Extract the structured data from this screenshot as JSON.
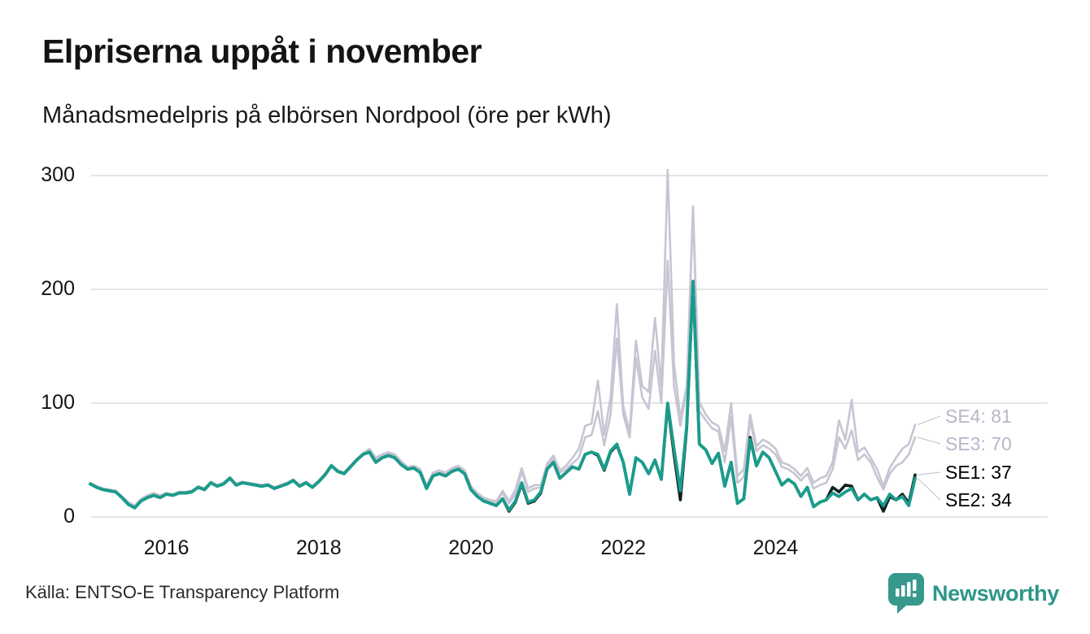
{
  "header": {
    "title": "Elpriserna uppåt i november",
    "subtitle": "Månadsmedelpris på elbörsen Nordpool (öre per kWh)"
  },
  "footer": {
    "source": "Källa: ENTSO-E Transparency Platform",
    "brand": "Newsworthy"
  },
  "colors": {
    "grid": "#dcdbe0",
    "connector": "#c9c8d1",
    "muted_series": "#c7c5d3",
    "muted_label": "#b9b6c7",
    "dark_series": "#10211d",
    "accent_series": "#1a9c8c",
    "brand_teal": "#2e968b",
    "label_black": "#000000"
  },
  "chart_data": {
    "type": "line",
    "title": "Elpriserna uppåt i november",
    "subtitle": "Månadsmedelpris på elbörsen Nordpool (öre per kWh)",
    "x_start": "2015-01",
    "x_end": "2025-11",
    "x_unit": "month",
    "ylim": [
      0,
      310
    ],
    "grid": "horizontal",
    "legend_position": "end-of-line-labels",
    "y_ticks": [
      0,
      100,
      200,
      300
    ],
    "x_ticks": [
      {
        "label": "2016",
        "month": 12
      },
      {
        "label": "2018",
        "month": 36
      },
      {
        "label": "2020",
        "month": 60
      },
      {
        "label": "2022",
        "month": 84
      },
      {
        "label": "2024",
        "month": 108
      }
    ],
    "series": [
      {
        "name": "SE4",
        "end_label": "SE4: 81",
        "end_value": 81,
        "color": "#c7c5d3",
        "label_color": "#b9b6c7",
        "values": [
          30,
          27,
          25,
          24,
          23,
          18,
          13,
          10,
          16,
          19,
          21,
          19,
          21,
          20,
          22,
          22,
          23,
          27,
          25,
          31,
          28,
          30,
          35,
          29,
          31,
          30,
          29,
          28,
          29,
          26,
          28,
          30,
          33,
          28,
          31,
          27,
          32,
          38,
          46,
          41,
          39,
          45,
          51,
          56,
          60,
          52,
          55,
          57,
          55,
          49,
          44,
          45,
          42,
          28,
          39,
          41,
          39,
          43,
          45,
          41,
          27,
          21,
          17,
          15,
          14,
          23,
          14,
          24,
          43,
          25,
          28,
          28,
          47,
          54,
          41,
          45,
          52,
          60,
          80,
          82,
          120,
          72,
          105,
          187,
          97,
          75,
          155,
          115,
          110,
          175,
          115,
          305,
          135,
          87,
          115,
          273,
          101,
          90,
          83,
          80,
          58,
          100,
          36,
          42,
          90,
          62,
          68,
          65,
          60,
          48,
          46,
          42,
          36,
          43,
          30,
          34,
          36,
          48,
          85,
          68,
          103,
          57,
          61,
          52,
          42,
          27,
          43,
          52,
          60,
          64,
          81
        ]
      },
      {
        "name": "SE3",
        "end_label": "SE3: 70",
        "end_value": 70,
        "color": "#c7c5d3",
        "label_color": "#b9b6c7",
        "values": [
          30,
          27,
          25,
          24,
          23,
          18,
          13,
          10,
          16,
          19,
          21,
          19,
          21,
          20,
          22,
          22,
          23,
          27,
          25,
          31,
          28,
          30,
          35,
          29,
          31,
          30,
          29,
          28,
          29,
          26,
          28,
          30,
          33,
          28,
          31,
          27,
          32,
          38,
          46,
          41,
          39,
          45,
          51,
          56,
          59,
          51,
          54,
          56,
          54,
          48,
          43,
          44,
          41,
          27,
          38,
          40,
          38,
          42,
          44,
          40,
          26,
          20,
          16,
          14,
          13,
          21,
          12,
          20,
          40,
          22,
          25,
          26,
          45,
          52,
          39,
          42,
          47,
          52,
          70,
          72,
          93,
          63,
          90,
          157,
          90,
          70,
          140,
          105,
          95,
          146,
          100,
          225,
          115,
          80,
          112,
          270,
          93,
          85,
          78,
          75,
          48,
          88,
          30,
          35,
          85,
          58,
          63,
          60,
          55,
          44,
          42,
          38,
          32,
          38,
          25,
          28,
          30,
          42,
          70,
          60,
          76,
          50,
          55,
          48,
          35,
          24,
          38,
          45,
          48,
          55,
          70
        ]
      },
      {
        "name": "SE1",
        "end_label": "SE1: 37",
        "end_value": 37,
        "color": "#10211d",
        "label_color": "#000000",
        "values": [
          29,
          26,
          24,
          23,
          22,
          17,
          11,
          8,
          14,
          17,
          19,
          17,
          20,
          19,
          21,
          21,
          22,
          26,
          24,
          30,
          27,
          29,
          34,
          28,
          30,
          29,
          28,
          27,
          28,
          25,
          27,
          29,
          32,
          27,
          30,
          26,
          31,
          37,
          45,
          40,
          38,
          44,
          50,
          55,
          57,
          48,
          52,
          54,
          52,
          46,
          42,
          43,
          39,
          25,
          36,
          38,
          36,
          40,
          42,
          38,
          24,
          18,
          14,
          12,
          10,
          16,
          5,
          13,
          29,
          12,
          14,
          21,
          42,
          48,
          34,
          39,
          44,
          42,
          55,
          57,
          54,
          41,
          57,
          63,
          48,
          20,
          52,
          48,
          38,
          50,
          33,
          99,
          55,
          15,
          78,
          207,
          64,
          59,
          47,
          56,
          27,
          48,
          12,
          16,
          70,
          45,
          57,
          52,
          40,
          28,
          33,
          29,
          18,
          26,
          9,
          13,
          15,
          26,
          22,
          28,
          27,
          15,
          20,
          15,
          17,
          5,
          18,
          15,
          20,
          12,
          37
        ]
      },
      {
        "name": "SE2",
        "end_label": "SE2: 34",
        "end_value": 34,
        "color": "#1a9c8c",
        "label_color": "#000000",
        "values": [
          29,
          26,
          24,
          23,
          22,
          17,
          11,
          8,
          14,
          17,
          19,
          17,
          20,
          19,
          21,
          21,
          22,
          26,
          24,
          30,
          27,
          29,
          34,
          28,
          30,
          29,
          28,
          27,
          28,
          25,
          27,
          29,
          32,
          27,
          30,
          26,
          31,
          37,
          45,
          40,
          38,
          44,
          50,
          55,
          57,
          48,
          52,
          54,
          52,
          46,
          42,
          43,
          39,
          25,
          36,
          38,
          36,
          40,
          42,
          38,
          24,
          18,
          14,
          12,
          10,
          16,
          6,
          14,
          30,
          13,
          15,
          22,
          42,
          48,
          34,
          39,
          44,
          42,
          55,
          57,
          55,
          42,
          58,
          64,
          48,
          20,
          52,
          48,
          38,
          50,
          33,
          100,
          60,
          23,
          80,
          207,
          64,
          59,
          47,
          56,
          27,
          48,
          12,
          16,
          68,
          45,
          57,
          52,
          40,
          28,
          33,
          29,
          18,
          26,
          9,
          13,
          15,
          21,
          18,
          22,
          25,
          15,
          20,
          15,
          17,
          10,
          20,
          15,
          18,
          10,
          34
        ]
      }
    ]
  }
}
